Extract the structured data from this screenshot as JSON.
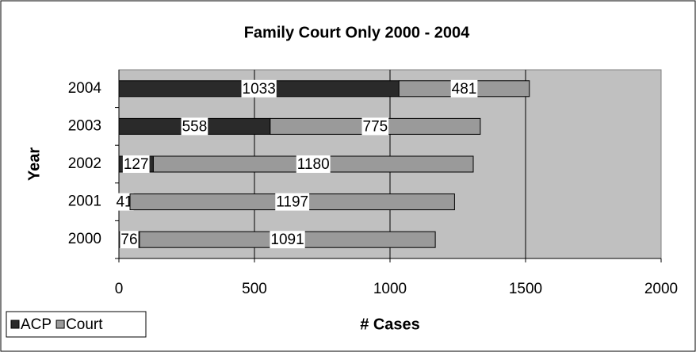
{
  "chart_data": {
    "type": "stacked_bar_horizontal",
    "title": "Family Court Only 2000 - 2004",
    "x_label": "# Cases",
    "y_label": "Year",
    "categories": [
      "2000",
      "2001",
      "2002",
      "2003",
      "2004"
    ],
    "series": [
      {
        "name": "ACP",
        "color": "#2a2a2a",
        "values": [
          76,
          41,
          127,
          558,
          1033
        ]
      },
      {
        "name": "Court",
        "color": "#9a9a9a",
        "values": [
          1091,
          1197,
          1180,
          775,
          481
        ]
      }
    ],
    "xlim": [
      0,
      2000
    ],
    "xticks": [
      0,
      500,
      1000,
      1500,
      2000
    ],
    "grid": true,
    "legend": "bottom-left"
  }
}
